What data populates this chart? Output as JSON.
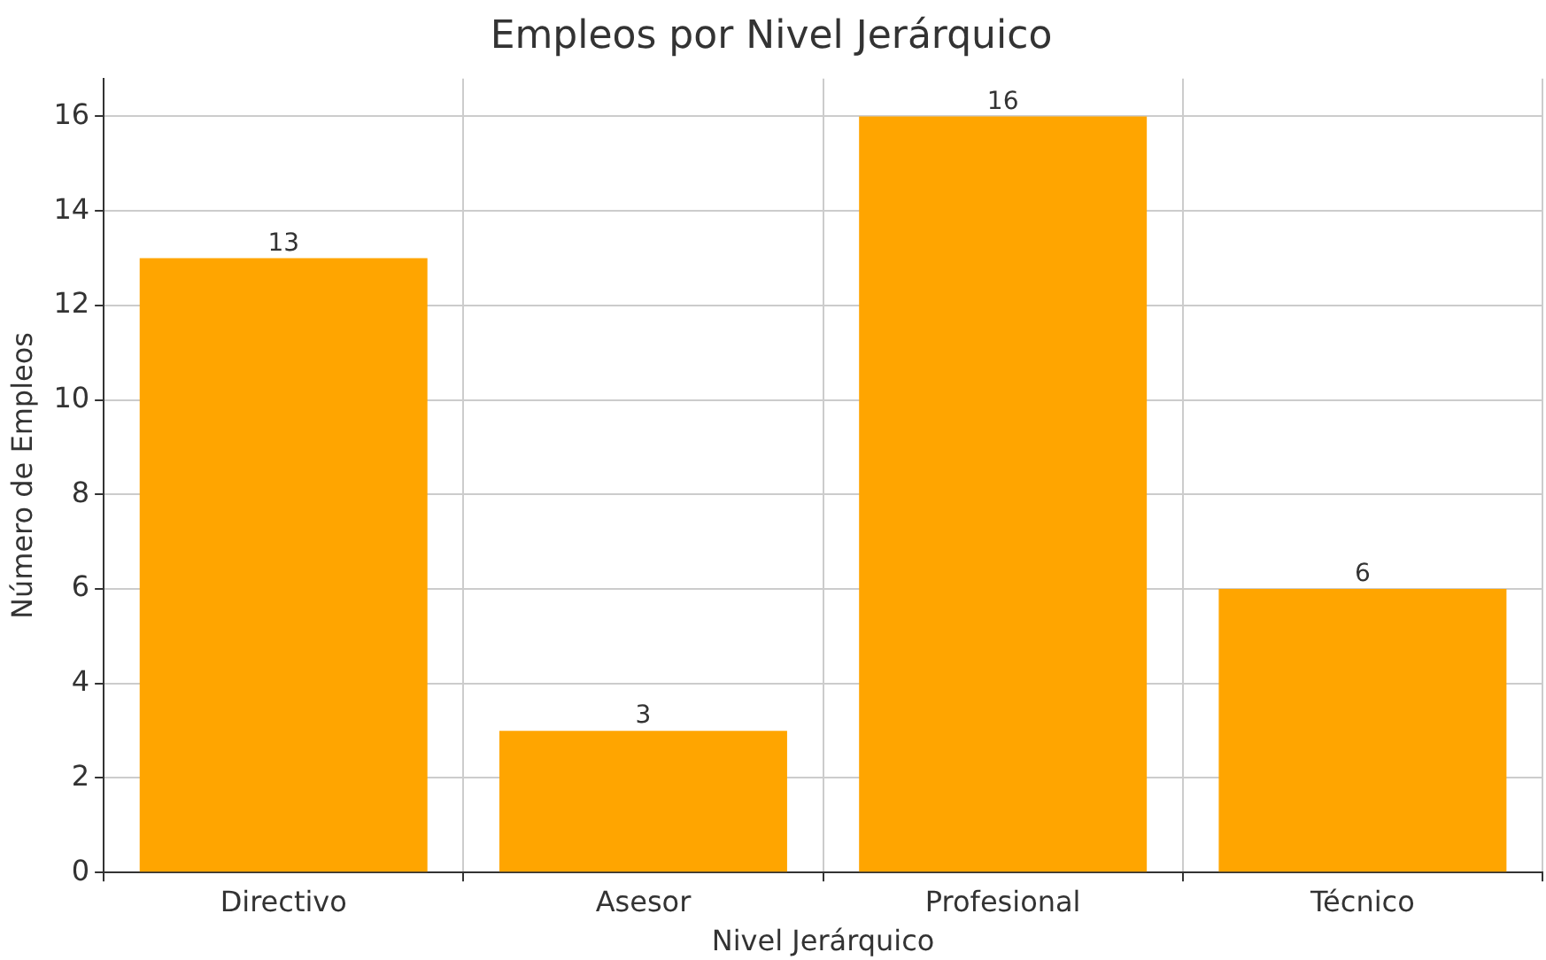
{
  "chart_data": {
    "type": "bar",
    "title": "Empleos por Nivel Jerárquico",
    "xlabel": "Nivel Jerárquico",
    "ylabel": "Número de Empleos",
    "categories": [
      "Directivo",
      "Asesor",
      "Profesional",
      "Técnico"
    ],
    "values": [
      13,
      3,
      16,
      6
    ],
    "color": "#ffa500",
    "ylim": [
      0,
      16.8
    ],
    "yticks": [
      0,
      2,
      4,
      6,
      8,
      10,
      12,
      14,
      16
    ],
    "grid": true,
    "data_labels": true
  }
}
